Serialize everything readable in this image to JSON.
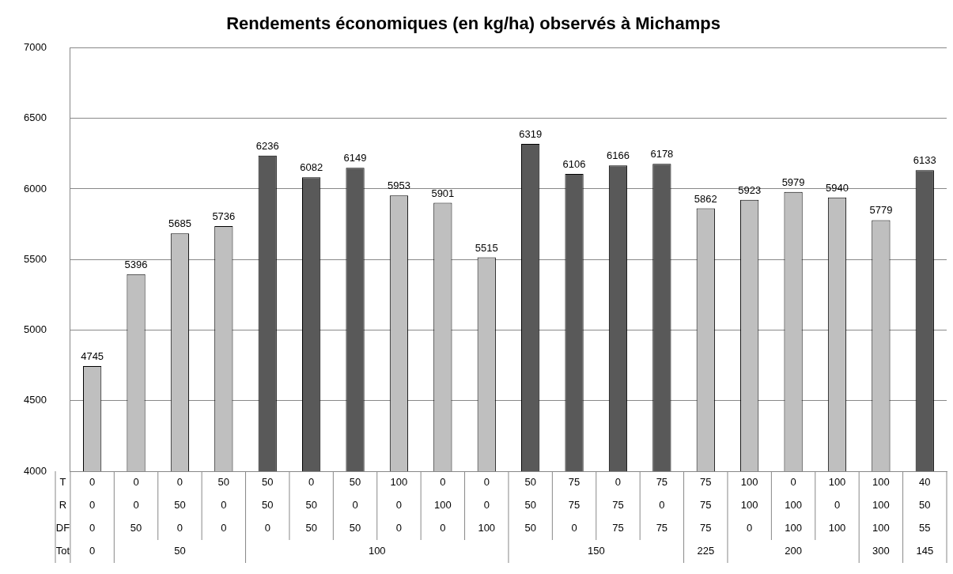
{
  "chart_data": {
    "type": "bar",
    "title": "Rendements économiques (en kg/ha) observés à Michamps",
    "categories": [
      "0",
      "0",
      "0",
      "50",
      "50",
      "0",
      "50",
      "100",
      "0",
      "0",
      "50",
      "75",
      "0",
      "75",
      "75",
      "100",
      "0",
      "100",
      "100",
      "40"
    ],
    "values": [
      4745,
      5396,
      5685,
      5736,
      6236,
      6082,
      6149,
      5953,
      5901,
      5515,
      6319,
      6106,
      6166,
      6178,
      5862,
      5923,
      5979,
      5940,
      5779,
      6133
    ],
    "colors": [
      "#bfbfbf",
      "#bfbfbf",
      "#bfbfbf",
      "#bfbfbf",
      "#595959",
      "#595959",
      "#595959",
      "#bfbfbf",
      "#bfbfbf",
      "#bfbfbf",
      "#595959",
      "#595959",
      "#595959",
      "#595959",
      "#bfbfbf",
      "#bfbfbf",
      "#bfbfbf",
      "#bfbfbf",
      "#bfbfbf",
      "#595959"
    ],
    "annotations": [
      "T",
      "R",
      "DF",
      "Tot",
      "0",
      "0",
      "50",
      "0",
      "50",
      "50",
      "0",
      "0",
      "100",
      "0",
      "50",
      "75",
      "75",
      "0",
      "75",
      "100",
      "100",
      "0",
      "100",
      "50",
      "0",
      "50",
      "0",
      "0",
      "0",
      "50",
      "50",
      "0",
      "0",
      "100",
      "50",
      "0",
      "75",
      "75",
      "75",
      "0",
      "100",
      "100",
      "100",
      "55",
      "0",
      "50",
      "100",
      "150",
      "225",
      "200",
      "300",
      "145"
    ],
    "ylim": [
      4000,
      7000
    ],
    "yticks": [
      4000,
      4500,
      5000,
      5500,
      6000,
      6500,
      7000
    ],
    "grid": "y",
    "data_labels": true
  }
}
